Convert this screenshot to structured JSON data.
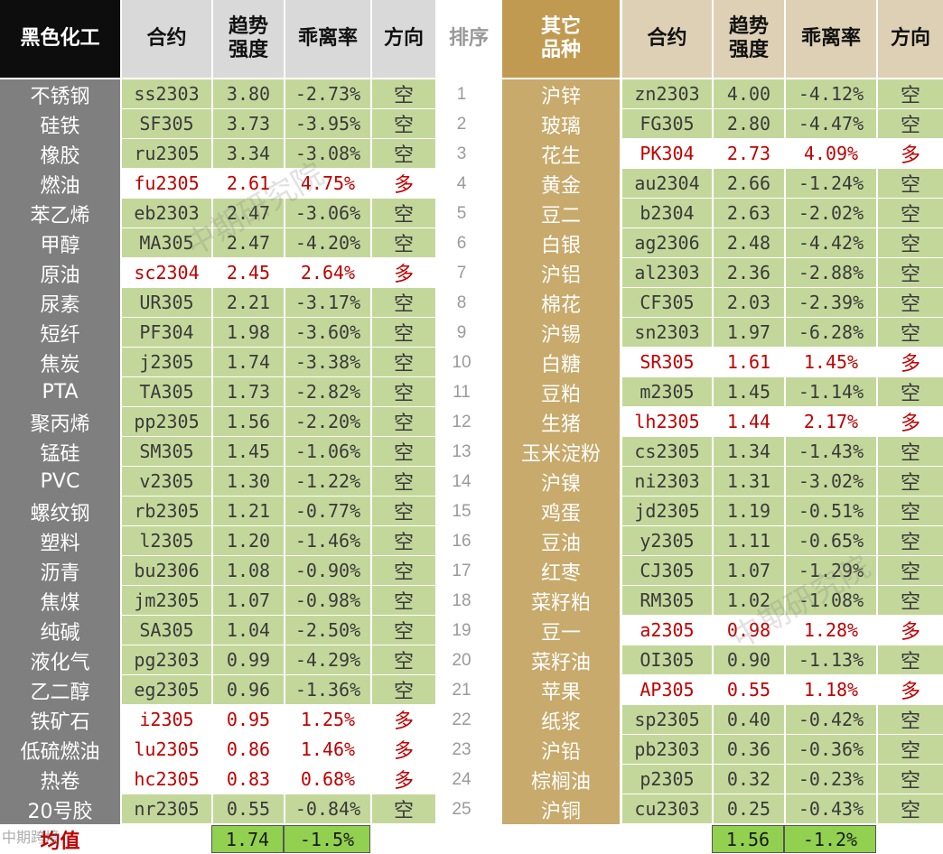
{
  "colors": {
    "green": "#c4d79b",
    "avg_green": "#92d050",
    "black_header": "#0d0d0d",
    "dark_name_bg": "#7f7f7f",
    "gold_header": "#c19a52",
    "gold_name_bg": "#c7aa6c",
    "light_header": "#d9d9d9",
    "tan_header": "#ddd0b5",
    "red": "#c00000"
  },
  "left_table": {
    "header": {
      "name": "黑色化工",
      "contract": "合约",
      "trend": [
        "趋势",
        "强度"
      ],
      "deviation": "乖离率",
      "direction": "方向"
    },
    "rows": [
      {
        "name": "不锈钢",
        "contract": "ss2303",
        "trend": "3.80",
        "deviation": "-2.73%",
        "direction": "空",
        "highlight": false
      },
      {
        "name": "硅铁",
        "contract": "SF305",
        "trend": "3.73",
        "deviation": "-3.95%",
        "direction": "空",
        "highlight": false
      },
      {
        "name": "橡胶",
        "contract": "ru2305",
        "trend": "3.34",
        "deviation": "-3.08%",
        "direction": "空",
        "highlight": false
      },
      {
        "name": "燃油",
        "contract": "fu2305",
        "trend": "2.61",
        "deviation": "4.75%",
        "direction": "多",
        "highlight": true
      },
      {
        "name": "苯乙烯",
        "contract": "eb2303",
        "trend": "2.47",
        "deviation": "-3.06%",
        "direction": "空",
        "highlight": false
      },
      {
        "name": "甲醇",
        "contract": "MA305",
        "trend": "2.47",
        "deviation": "-4.20%",
        "direction": "空",
        "highlight": false
      },
      {
        "name": "原油",
        "contract": "sc2304",
        "trend": "2.45",
        "deviation": "2.64%",
        "direction": "多",
        "highlight": true
      },
      {
        "name": "尿素",
        "contract": "UR305",
        "trend": "2.21",
        "deviation": "-3.17%",
        "direction": "空",
        "highlight": false
      },
      {
        "name": "短纤",
        "contract": "PF304",
        "trend": "1.98",
        "deviation": "-3.60%",
        "direction": "空",
        "highlight": false
      },
      {
        "name": "焦炭",
        "contract": "j2305",
        "trend": "1.74",
        "deviation": "-3.38%",
        "direction": "空",
        "highlight": false
      },
      {
        "name": "PTA",
        "contract": "TA305",
        "trend": "1.73",
        "deviation": "-2.82%",
        "direction": "空",
        "highlight": false
      },
      {
        "name": "聚丙烯",
        "contract": "pp2305",
        "trend": "1.56",
        "deviation": "-2.20%",
        "direction": "空",
        "highlight": false
      },
      {
        "name": "锰硅",
        "contract": "SM305",
        "trend": "1.45",
        "deviation": "-1.06%",
        "direction": "空",
        "highlight": false
      },
      {
        "name": "PVC",
        "contract": "v2305",
        "trend": "1.30",
        "deviation": "-1.22%",
        "direction": "空",
        "highlight": false
      },
      {
        "name": "螺纹钢",
        "contract": "rb2305",
        "trend": "1.21",
        "deviation": "-0.77%",
        "direction": "空",
        "highlight": false
      },
      {
        "name": "塑料",
        "contract": "l2305",
        "trend": "1.20",
        "deviation": "-1.46%",
        "direction": "空",
        "highlight": false
      },
      {
        "name": "沥青",
        "contract": "bu2306",
        "trend": "1.08",
        "deviation": "-0.90%",
        "direction": "空",
        "highlight": false
      },
      {
        "name": "焦煤",
        "contract": "jm2305",
        "trend": "1.07",
        "deviation": "-0.98%",
        "direction": "空",
        "highlight": false
      },
      {
        "name": "纯碱",
        "contract": "SA305",
        "trend": "1.04",
        "deviation": "-2.50%",
        "direction": "空",
        "highlight": false
      },
      {
        "name": "液化气",
        "contract": "pg2303",
        "trend": "0.99",
        "deviation": "-4.29%",
        "direction": "空",
        "highlight": false
      },
      {
        "name": "乙二醇",
        "contract": "eg2305",
        "trend": "0.96",
        "deviation": "-1.36%",
        "direction": "空",
        "highlight": false
      },
      {
        "name": "铁矿石",
        "contract": "i2305",
        "trend": "0.95",
        "deviation": "1.25%",
        "direction": "多",
        "highlight": true
      },
      {
        "name": "低硫燃油",
        "contract": "lu2305",
        "trend": "0.86",
        "deviation": "1.46%",
        "direction": "多",
        "highlight": true
      },
      {
        "name": "热卷",
        "contract": "hc2305",
        "trend": "0.83",
        "deviation": "0.68%",
        "direction": "多",
        "highlight": true
      },
      {
        "name": "20号胶",
        "contract": "nr2305",
        "trend": "0.55",
        "deviation": "-0.84%",
        "direction": "空",
        "highlight": false
      }
    ],
    "average": {
      "label": "均值",
      "trend": "1.74",
      "deviation": "-1.5%"
    }
  },
  "rank_column": {
    "header": "排序",
    "ranks": [
      "1",
      "2",
      "3",
      "4",
      "5",
      "6",
      "7",
      "8",
      "9",
      "10",
      "11",
      "12",
      "13",
      "14",
      "15",
      "16",
      "17",
      "18",
      "19",
      "20",
      "21",
      "22",
      "23",
      "24",
      "25"
    ]
  },
  "right_table": {
    "header": {
      "name": [
        "其它",
        "品种"
      ],
      "contract": "合约",
      "trend": [
        "趋势",
        "强度"
      ],
      "deviation": "乖离率",
      "direction": "方向"
    },
    "rows": [
      {
        "name": "沪锌",
        "contract": "zn2303",
        "trend": "4.00",
        "deviation": "-4.12%",
        "direction": "空",
        "highlight": false
      },
      {
        "name": "玻璃",
        "contract": "FG305",
        "trend": "2.80",
        "deviation": "-4.47%",
        "direction": "空",
        "highlight": false
      },
      {
        "name": "花生",
        "contract": "PK304",
        "trend": "2.73",
        "deviation": "4.09%",
        "direction": "多",
        "highlight": true
      },
      {
        "name": "黄金",
        "contract": "au2304",
        "trend": "2.66",
        "deviation": "-1.24%",
        "direction": "空",
        "highlight": false
      },
      {
        "name": "豆二",
        "contract": "b2304",
        "trend": "2.63",
        "deviation": "-2.02%",
        "direction": "空",
        "highlight": false
      },
      {
        "name": "白银",
        "contract": "ag2306",
        "trend": "2.48",
        "deviation": "-4.42%",
        "direction": "空",
        "highlight": false
      },
      {
        "name": "沪铝",
        "contract": "al2303",
        "trend": "2.36",
        "deviation": "-2.88%",
        "direction": "空",
        "highlight": false
      },
      {
        "name": "棉花",
        "contract": "CF305",
        "trend": "2.03",
        "deviation": "-2.39%",
        "direction": "空",
        "highlight": false
      },
      {
        "name": "沪锡",
        "contract": "sn2303",
        "trend": "1.97",
        "deviation": "-6.28%",
        "direction": "空",
        "highlight": false
      },
      {
        "name": "白糖",
        "contract": "SR305",
        "trend": "1.61",
        "deviation": "1.45%",
        "direction": "多",
        "highlight": true
      },
      {
        "name": "豆粕",
        "contract": "m2305",
        "trend": "1.45",
        "deviation": "-1.14%",
        "direction": "空",
        "highlight": false
      },
      {
        "name": "生猪",
        "contract": "lh2305",
        "trend": "1.44",
        "deviation": "2.17%",
        "direction": "多",
        "highlight": true
      },
      {
        "name": "玉米淀粉",
        "contract": "cs2305",
        "trend": "1.34",
        "deviation": "-1.43%",
        "direction": "空",
        "highlight": false
      },
      {
        "name": "沪镍",
        "contract": "ni2303",
        "trend": "1.31",
        "deviation": "-3.02%",
        "direction": "空",
        "highlight": false
      },
      {
        "name": "鸡蛋",
        "contract": "jd2305",
        "trend": "1.19",
        "deviation": "-0.51%",
        "direction": "空",
        "highlight": false
      },
      {
        "name": "豆油",
        "contract": "y2305",
        "trend": "1.11",
        "deviation": "-0.65%",
        "direction": "空",
        "highlight": false
      },
      {
        "name": "红枣",
        "contract": "CJ305",
        "trend": "1.07",
        "deviation": "-1.29%",
        "direction": "空",
        "highlight": false
      },
      {
        "name": "菜籽粕",
        "contract": "RM305",
        "trend": "1.02",
        "deviation": "-1.08%",
        "direction": "空",
        "highlight": false
      },
      {
        "name": "豆一",
        "contract": "a2305",
        "trend": "0.98",
        "deviation": "1.28%",
        "direction": "多",
        "highlight": true
      },
      {
        "name": "菜籽油",
        "contract": "OI305",
        "trend": "0.90",
        "deviation": "-1.13%",
        "direction": "空",
        "highlight": false
      },
      {
        "name": "苹果",
        "contract": "AP305",
        "trend": "0.55",
        "deviation": "1.18%",
        "direction": "多",
        "highlight": true
      },
      {
        "name": "纸浆",
        "contract": "sp2305",
        "trend": "0.40",
        "deviation": "-0.42%",
        "direction": "空",
        "highlight": false
      },
      {
        "name": "沪铅",
        "contract": "pb2303",
        "trend": "0.36",
        "deviation": "-0.36%",
        "direction": "空",
        "highlight": false
      },
      {
        "name": "棕榈油",
        "contract": "p2305",
        "trend": "0.32",
        "deviation": "-0.23%",
        "direction": "空",
        "highlight": false
      },
      {
        "name": "沪铜",
        "contract": "cu2303",
        "trend": "0.25",
        "deviation": "-0.43%",
        "direction": "空",
        "highlight": false
      }
    ],
    "average": {
      "trend": "1.56",
      "deviation": "-1.2%"
    }
  },
  "watermarks": [
    "中期研究院",
    "中期研究院"
  ],
  "footer_watermark": "中期跨境"
}
